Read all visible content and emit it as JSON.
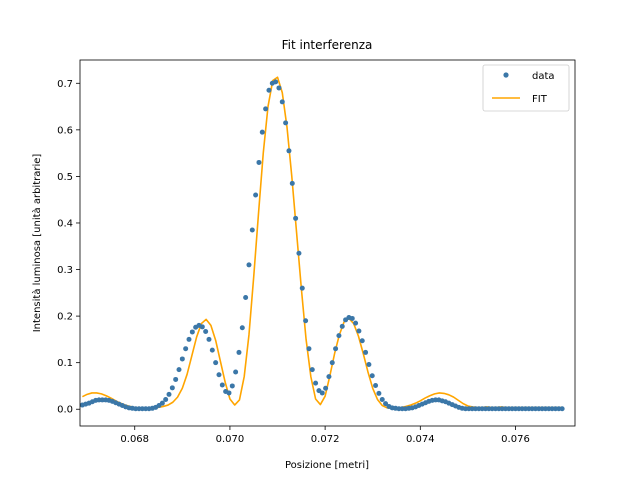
{
  "chart_data": {
    "type": "scatter",
    "title": "Fit interferenza",
    "xlabel": "Posizione [metri]",
    "ylabel": "Intensità luminosa [unità arbitrarie]",
    "xlim": [
      0.06685,
      0.07725
    ],
    "ylim": [
      -0.036,
      0.75
    ],
    "x_ticks": [
      0.068,
      0.07,
      0.072,
      0.074,
      0.076
    ],
    "x_tick_labels": [
      "0.068",
      "0.070",
      "0.072",
      "0.074",
      "0.076"
    ],
    "y_ticks": [
      0.0,
      0.1,
      0.2,
      0.3,
      0.4,
      0.5,
      0.6,
      0.7
    ],
    "y_tick_labels": [
      "0.0",
      "0.1",
      "0.2",
      "0.3",
      "0.4",
      "0.5",
      "0.6",
      "0.7"
    ],
    "grid": false,
    "legend_position": "top-right",
    "colors": {
      "data": "#3b77a8",
      "fit": "#ffa500"
    },
    "series": [
      {
        "name": "data",
        "kind": "points",
        "x": [
          0.0669,
          0.06697,
          0.06704,
          0.06711,
          0.06718,
          0.06725,
          0.06732,
          0.06739,
          0.06746,
          0.06753,
          0.0676,
          0.06767,
          0.06774,
          0.06781,
          0.06788,
          0.06795,
          0.06802,
          0.06809,
          0.06816,
          0.06823,
          0.0683,
          0.06837,
          0.06844,
          0.06851,
          0.06858,
          0.06865,
          0.06872,
          0.06879,
          0.06886,
          0.06893,
          0.069,
          0.06907,
          0.06914,
          0.06921,
          0.06928,
          0.06935,
          0.06942,
          0.06949,
          0.06956,
          0.06963,
          0.0697,
          0.06977,
          0.06984,
          0.06991,
          0.06998,
          0.07005,
          0.07012,
          0.07019,
          0.07026,
          0.07033,
          0.0704,
          0.07047,
          0.07054,
          0.07061,
          0.07068,
          0.07075,
          0.07082,
          0.07089,
          0.07096,
          0.07103,
          0.0711,
          0.07117,
          0.07124,
          0.07131,
          0.07138,
          0.07145,
          0.07152,
          0.07159,
          0.07166,
          0.07173,
          0.0718,
          0.07187,
          0.07194,
          0.07201,
          0.07208,
          0.07215,
          0.07222,
          0.07229,
          0.07236,
          0.07243,
          0.0725,
          0.07257,
          0.07264,
          0.07271,
          0.07278,
          0.07285,
          0.07292,
          0.07299,
          0.07306,
          0.07313,
          0.0732,
          0.07327,
          0.07334,
          0.07341,
          0.07348,
          0.07355,
          0.07362,
          0.07369,
          0.07376,
          0.07383,
          0.0739,
          0.07397,
          0.07404,
          0.07411,
          0.07418,
          0.07425,
          0.07432,
          0.07439,
          0.07446,
          0.07453,
          0.0746,
          0.07467,
          0.07474,
          0.07481,
          0.07488,
          0.07495,
          0.07502,
          0.07509,
          0.07516,
          0.07523,
          0.0753,
          0.07537,
          0.07544,
          0.07551,
          0.07558,
          0.07565,
          0.07572,
          0.07579,
          0.07586,
          0.07593,
          0.076,
          0.07607,
          0.07614,
          0.07621,
          0.07628,
          0.07635,
          0.07642,
          0.07649,
          0.07656,
          0.07663,
          0.0767,
          0.07677,
          0.07684,
          0.07691,
          0.07698
        ],
        "y": [
          0.009,
          0.011,
          0.013,
          0.016,
          0.019,
          0.02,
          0.02,
          0.02,
          0.019,
          0.017,
          0.014,
          0.011,
          0.008,
          0.005,
          0.003,
          0.002,
          0.001,
          0.001,
          0.001,
          0.001,
          0.001,
          0.002,
          0.004,
          0.008,
          0.013,
          0.021,
          0.032,
          0.046,
          0.064,
          0.085,
          0.108,
          0.13,
          0.15,
          0.166,
          0.176,
          0.18,
          0.177,
          0.167,
          0.15,
          0.127,
          0.1,
          0.074,
          0.052,
          0.038,
          0.035,
          0.05,
          0.08,
          0.122,
          0.175,
          0.24,
          0.31,
          0.385,
          0.46,
          0.53,
          0.595,
          0.645,
          0.685,
          0.7,
          0.703,
          0.69,
          0.66,
          0.615,
          0.555,
          0.485,
          0.41,
          0.335,
          0.26,
          0.19,
          0.13,
          0.085,
          0.056,
          0.04,
          0.035,
          0.045,
          0.07,
          0.1,
          0.13,
          0.158,
          0.178,
          0.192,
          0.197,
          0.195,
          0.185,
          0.168,
          0.147,
          0.122,
          0.096,
          0.072,
          0.051,
          0.034,
          0.021,
          0.012,
          0.006,
          0.003,
          0.002,
          0.001,
          0.001,
          0.001,
          0.002,
          0.003,
          0.005,
          0.008,
          0.011,
          0.014,
          0.017,
          0.019,
          0.02,
          0.02,
          0.018,
          0.016,
          0.013,
          0.01,
          0.007,
          0.004,
          0.002,
          0.001,
          0.001,
          0.001,
          0.001,
          0.001,
          0.001,
          0.001,
          0.001,
          0.001,
          0.001,
          0.001,
          0.001,
          0.001,
          0.001,
          0.001,
          0.001,
          0.001,
          0.001,
          0.001,
          0.001,
          0.001,
          0.001,
          0.001,
          0.001,
          0.001,
          0.001,
          0.001,
          0.001,
          0.001,
          0.001
        ]
      },
      {
        "name": "FIT",
        "kind": "line",
        "x": [
          0.0669,
          0.067,
          0.0671,
          0.0672,
          0.0673,
          0.0674,
          0.0675,
          0.0676,
          0.0677,
          0.0678,
          0.0679,
          0.068,
          0.0681,
          0.0682,
          0.0683,
          0.0684,
          0.0685,
          0.0686,
          0.0687,
          0.0688,
          0.0689,
          0.069,
          0.0691,
          0.0692,
          0.0693,
          0.0694,
          0.0695,
          0.0696,
          0.0697,
          0.0698,
          0.0699,
          0.07,
          0.0701,
          0.0702,
          0.0703,
          0.0704,
          0.0705,
          0.0706,
          0.0707,
          0.0708,
          0.0709,
          0.071,
          0.0711,
          0.0712,
          0.0713,
          0.0714,
          0.0715,
          0.0716,
          0.0717,
          0.0718,
          0.0719,
          0.072,
          0.0721,
          0.0722,
          0.0723,
          0.0724,
          0.0725,
          0.0726,
          0.0727,
          0.0728,
          0.0729,
          0.073,
          0.0731,
          0.0732,
          0.0733,
          0.0734,
          0.0735,
          0.0736,
          0.0737,
          0.0738,
          0.0739,
          0.074,
          0.0741,
          0.0742,
          0.0743,
          0.0744,
          0.0745,
          0.0746,
          0.0747,
          0.0748,
          0.0749,
          0.075,
          0.0751,
          0.0752,
          0.0753,
          0.0754,
          0.0755,
          0.0756,
          0.0757,
          0.0758,
          0.0759,
          0.076,
          0.0761,
          0.0762,
          0.0763,
          0.0764,
          0.0765,
          0.0766,
          0.0767,
          0.0768,
          0.0769,
          0.077
        ],
        "y": [
          0.027,
          0.032,
          0.035,
          0.035,
          0.033,
          0.029,
          0.024,
          0.018,
          0.013,
          0.009,
          0.006,
          0.004,
          0.003,
          0.003,
          0.003,
          0.003,
          0.004,
          0.006,
          0.009,
          0.015,
          0.026,
          0.045,
          0.075,
          0.115,
          0.155,
          0.184,
          0.193,
          0.18,
          0.148,
          0.103,
          0.058,
          0.022,
          0.009,
          0.02,
          0.07,
          0.16,
          0.285,
          0.42,
          0.55,
          0.65,
          0.706,
          0.713,
          0.68,
          0.605,
          0.5,
          0.38,
          0.26,
          0.15,
          0.07,
          0.022,
          0.01,
          0.028,
          0.072,
          0.12,
          0.16,
          0.188,
          0.195,
          0.184,
          0.157,
          0.12,
          0.08,
          0.045,
          0.021,
          0.008,
          0.003,
          0.002,
          0.003,
          0.004,
          0.006,
          0.009,
          0.013,
          0.018,
          0.024,
          0.029,
          0.033,
          0.035,
          0.034,
          0.031,
          0.026,
          0.019,
          0.012,
          0.007,
          0.005,
          0.004,
          0.004,
          0.005,
          0.004,
          0.004,
          0.005,
          0.004,
          0.004,
          0.004,
          0.004,
          0.004,
          0.004,
          0.004,
          0.004,
          0.004,
          0.004,
          0.004,
          0.004,
          0.004
        ]
      }
    ]
  }
}
